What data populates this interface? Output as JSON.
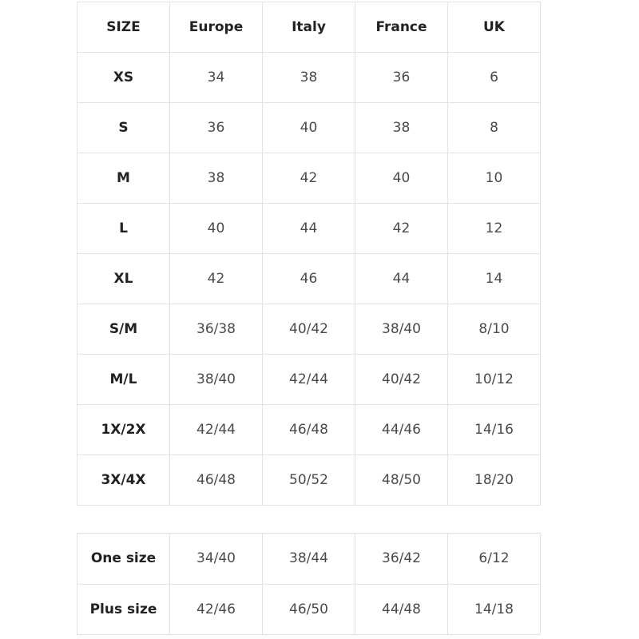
{
  "main_table": {
    "headers": [
      "SIZE",
      "Europe",
      "Italy",
      "France",
      "UK"
    ],
    "rows": [
      [
        "XS",
        "34",
        "38",
        "36",
        "6"
      ],
      [
        "S",
        "36",
        "40",
        "38",
        "8"
      ],
      [
        "M",
        "38",
        "42",
        "40",
        "10"
      ],
      [
        "L",
        "40",
        "44",
        "42",
        "12"
      ],
      [
        "XL",
        "42",
        "46",
        "44",
        "14"
      ],
      [
        "S/M",
        "36/38",
        "40/42",
        "38/40",
        "8/10"
      ],
      [
        "M/L",
        "38/40",
        "42/44",
        "40/42",
        "10/12"
      ],
      [
        "1X/2X",
        "42/44",
        "46/48",
        "44/46",
        "14/16"
      ],
      [
        "3X/4X",
        "46/48",
        "50/52",
        "48/50",
        "18/20"
      ]
    ]
  },
  "extra_table": {
    "rows": [
      [
        "One size",
        "34/40",
        "38/44",
        "36/42",
        "6/12"
      ],
      [
        "Plus size",
        "42/46",
        "46/50",
        "44/48",
        "14/18"
      ]
    ]
  },
  "colors": {
    "border": "#e2e2e2",
    "label_text": "#222222",
    "value_text": "#4a4a4a"
  }
}
